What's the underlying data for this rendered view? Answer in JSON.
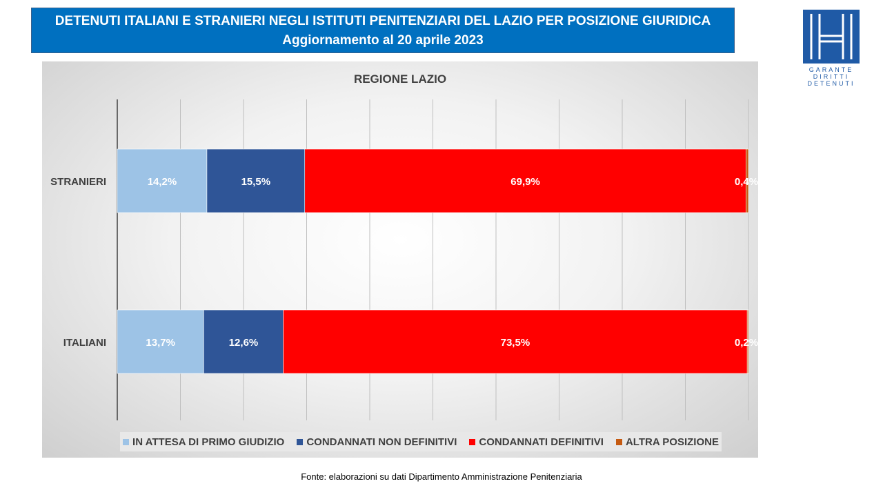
{
  "header": {
    "title": "DETENUTI ITALIANI E STRANIERI NEGLI ISTITUTI PENITENZIARI DEL LAZIO PER POSIZIONE GIURIDICA",
    "subtitle": "Aggiornamento al 20 aprile 2023"
  },
  "logo": {
    "line1": "GARANTE",
    "line2": "DIRITTI",
    "line3": "DETENUTI",
    "color": "#1f5aa6"
  },
  "chart_data": {
    "type": "bar",
    "orientation": "horizontal",
    "stacked": true,
    "title": "REGIONE LAZIO",
    "categories": [
      "STRANIERI",
      "ITALIANI"
    ],
    "series": [
      {
        "name": "IN ATTESA DI PRIMO GIUDIZIO",
        "color": "#9dc3e6",
        "values": [
          14.2,
          13.7
        ],
        "labels": [
          "14,2%",
          "13,7%"
        ]
      },
      {
        "name": "CONDANNATI NON DEFINITIVI",
        "color": "#2f5597",
        "values": [
          15.5,
          12.6
        ],
        "labels": [
          "15,5%",
          "12,6%"
        ]
      },
      {
        "name": "CONDANNATI DEFINITIVI",
        "color": "#ff0000",
        "values": [
          69.9,
          73.5
        ],
        "labels": [
          "69,9%",
          "73,5%"
        ]
      },
      {
        "name": "ALTRA POSIZIONE",
        "color": "#c55a11",
        "values": [
          0.4,
          0.2
        ],
        "labels": [
          "0,4%",
          "0,2%"
        ]
      }
    ],
    "xlim": [
      0,
      100
    ],
    "grid": true,
    "legend": "bottom"
  },
  "source": "Fonte: elaborazioni su dati Dipartimento Amministrazione Penitenziaria"
}
